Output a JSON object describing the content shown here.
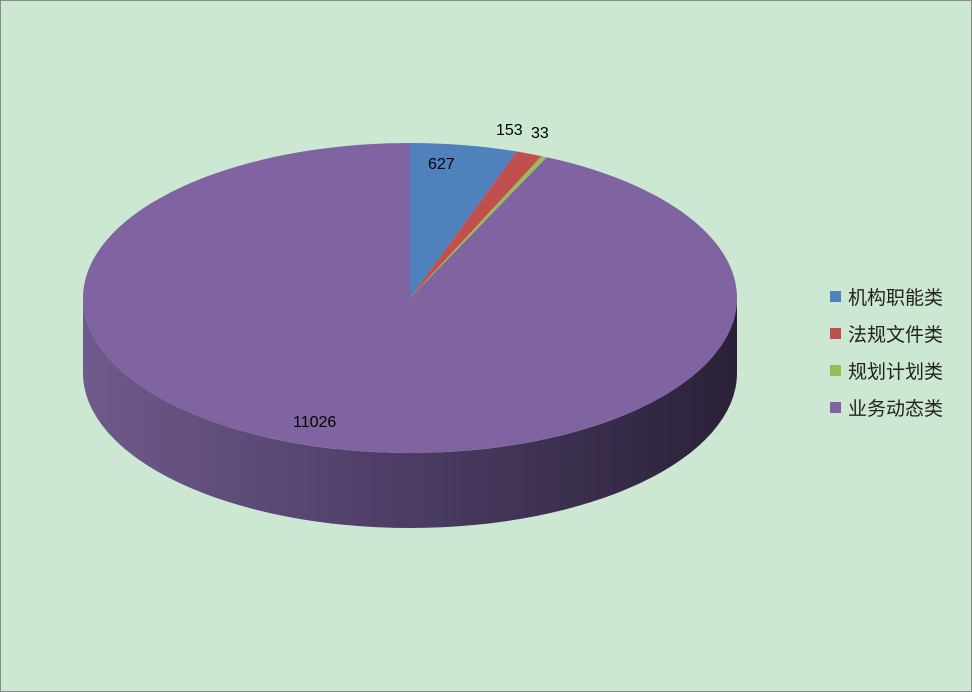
{
  "chart_data": {
    "type": "pie",
    "style": "3d",
    "categories": [
      "机构职能类",
      "法规文件类",
      "规划计划类",
      "业务动态类"
    ],
    "values": [
      627,
      153,
      33,
      11026
    ],
    "colors": [
      "#4f81bd",
      "#c0504d",
      "#9bbb59",
      "#8064a2"
    ],
    "data_labels": [
      "627",
      "153",
      "33",
      "11026"
    ],
    "legend_position": "right",
    "background": "#cde8d2"
  }
}
